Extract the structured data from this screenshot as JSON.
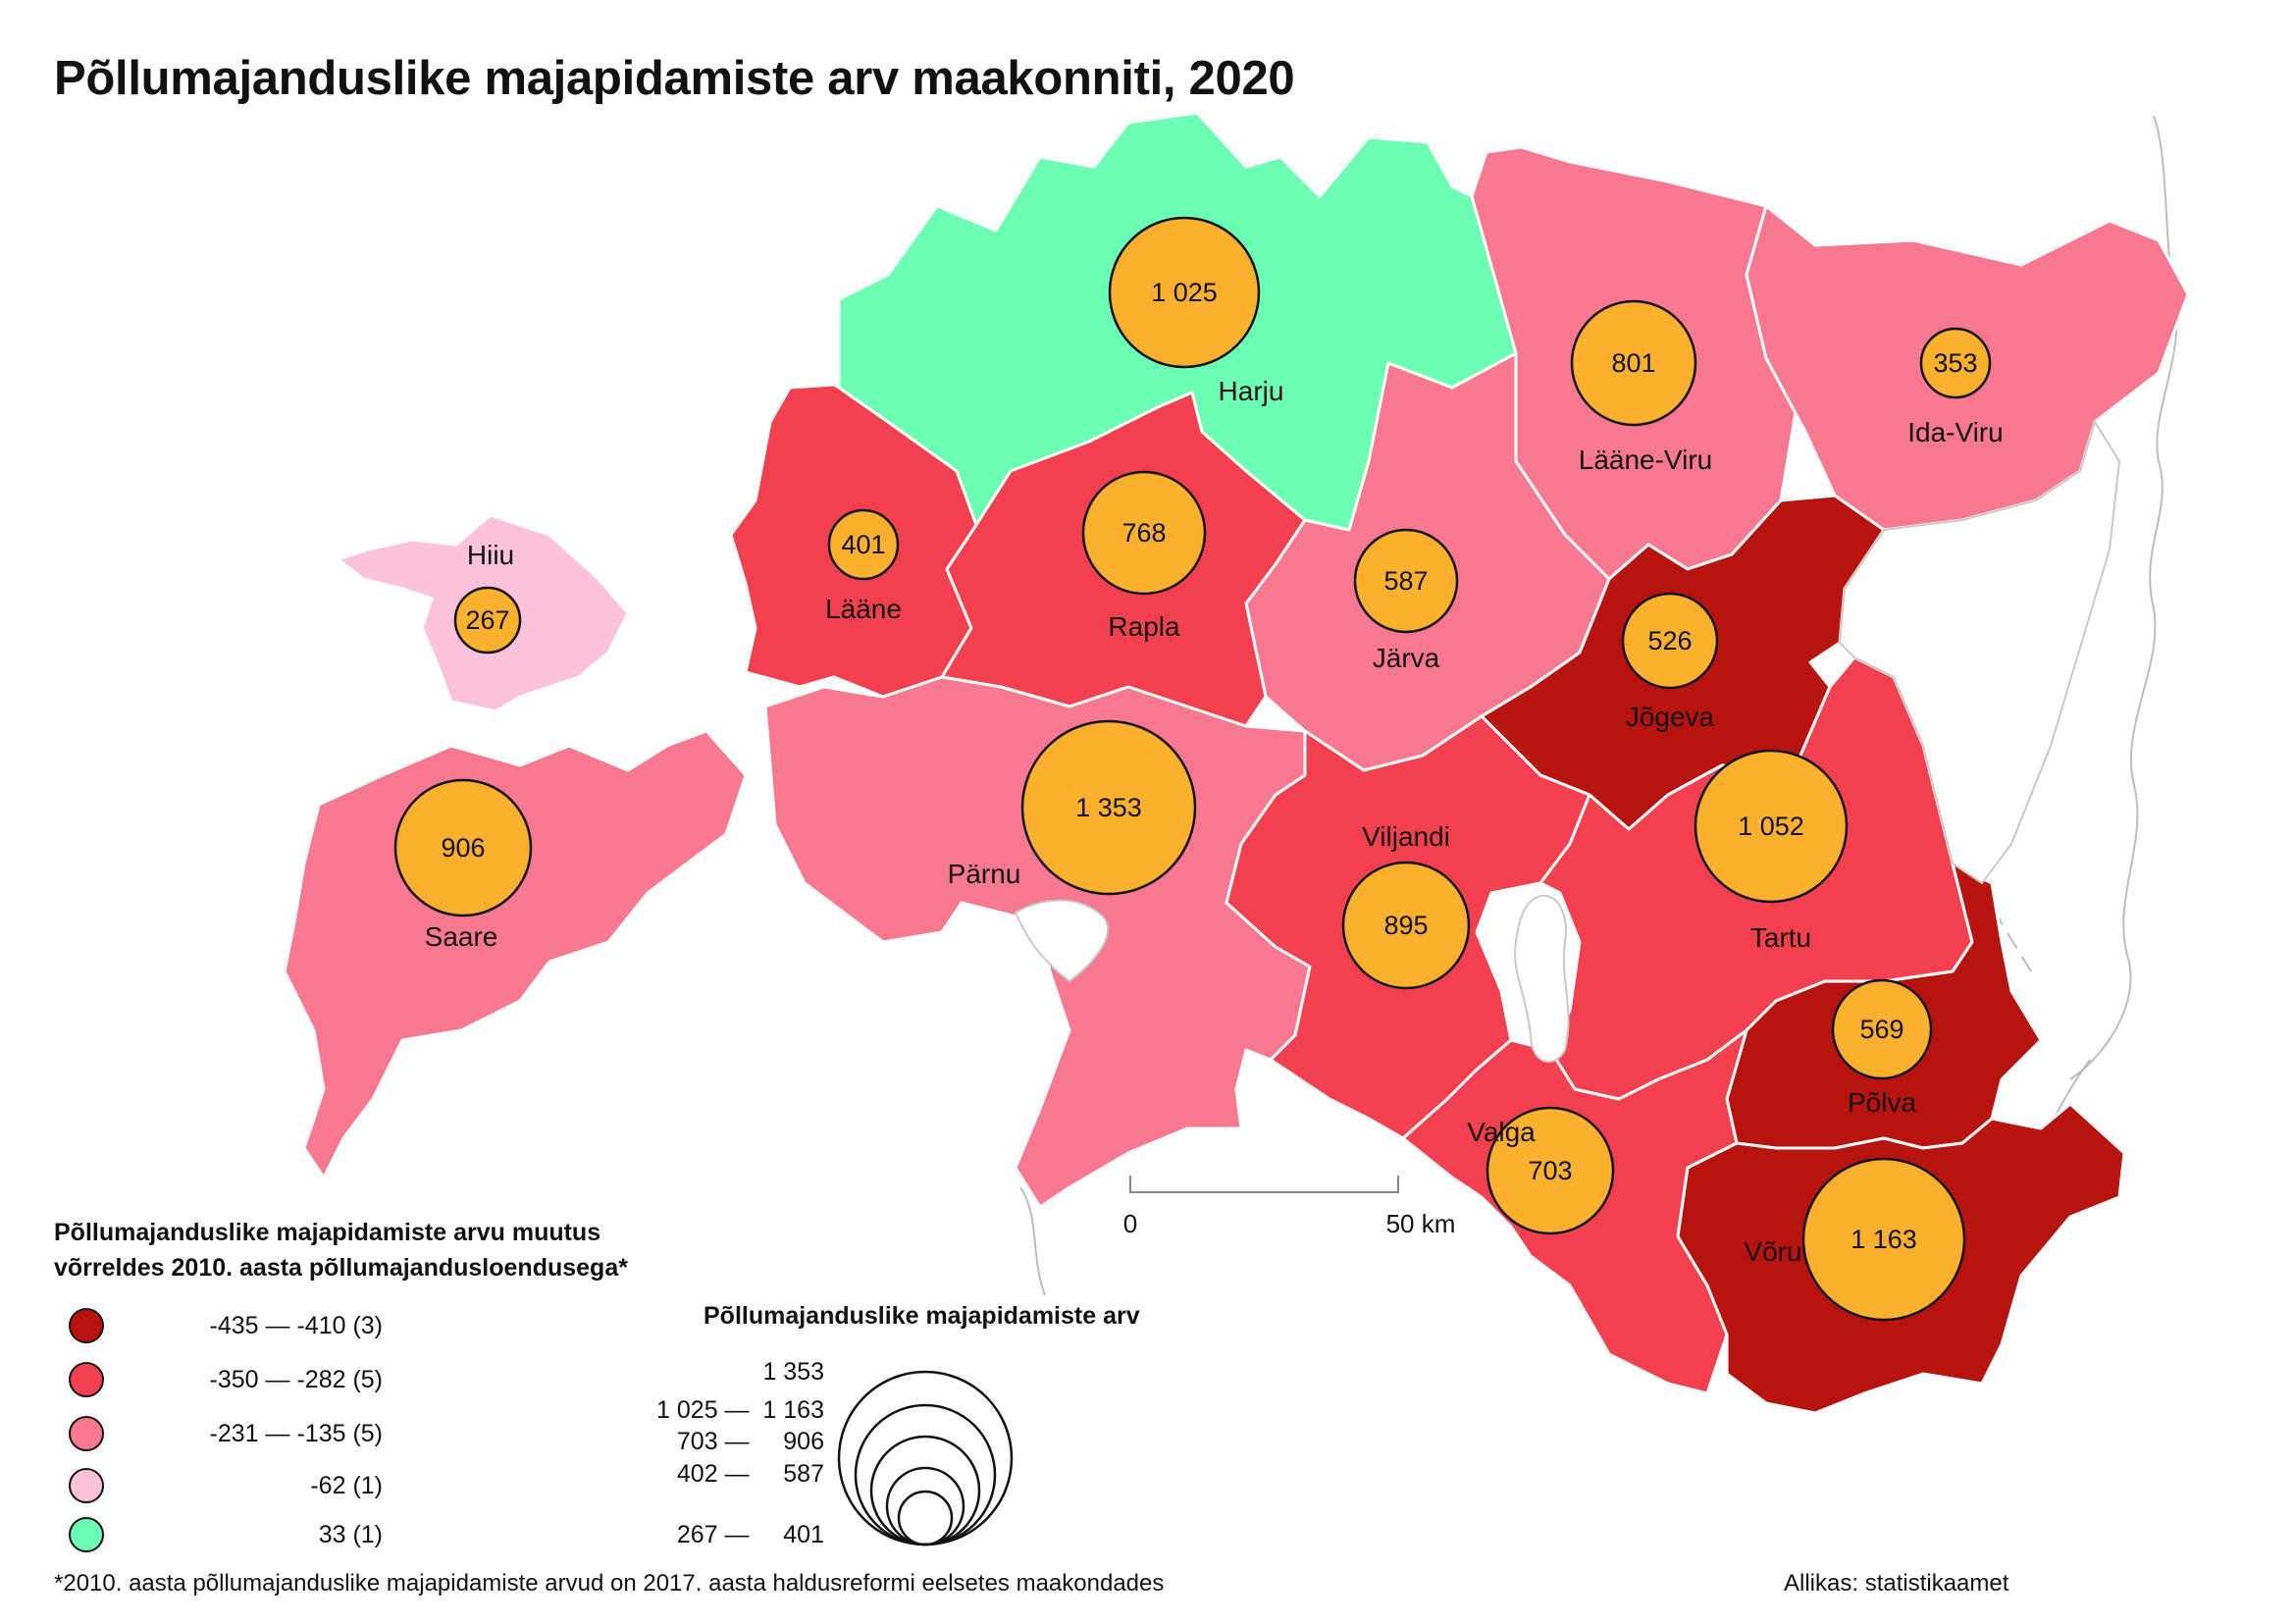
{
  "title": "Põllumajanduslike majapidamiste arv maakonniti, 2020",
  "colors": {
    "class1": "#b8140f",
    "class2": "#f2404f",
    "class3": "#f7788f",
    "class4": "#fbc2d9",
    "class5": "#6cffb4",
    "bubble": "#fbb12d"
  },
  "counties": [
    {
      "name": "Harju",
      "value": "1 025",
      "class": "class5"
    },
    {
      "name": "Lääne-Viru",
      "value": "801",
      "class": "class3"
    },
    {
      "name": "Ida-Viru",
      "value": "353",
      "class": "class3"
    },
    {
      "name": "Hiiu",
      "value": "267",
      "class": "class4"
    },
    {
      "name": "Lääne",
      "value": "401",
      "class": "class2"
    },
    {
      "name": "Rapla",
      "value": "768",
      "class": "class2"
    },
    {
      "name": "Järva",
      "value": "587",
      "class": "class3"
    },
    {
      "name": "Jõgeva",
      "value": "526",
      "class": "class1"
    },
    {
      "name": "Saare",
      "value": "906",
      "class": "class3"
    },
    {
      "name": "Pärnu",
      "value": "1 353",
      "class": "class3"
    },
    {
      "name": "Viljandi",
      "value": "895",
      "class": "class2"
    },
    {
      "name": "Tartu",
      "value": "1 052",
      "class": "class2"
    },
    {
      "name": "Põlva",
      "value": "569",
      "class": "class1"
    },
    {
      "name": "Valga",
      "value": "703",
      "class": "class2"
    },
    {
      "name": "Võru",
      "value": "1 163",
      "class": "class1"
    }
  ],
  "scale_bar": {
    "start": "0",
    "end": "50 km"
  },
  "color_legend": {
    "title_line1": "Põllumajanduslike majapidamiste arvu muutus",
    "title_line2": "võrreldes 2010. aasta põllumajandusloendusega*",
    "items": [
      {
        "label": "-435 — -410 (3)",
        "class": "class1"
      },
      {
        "label": "-350 — -282 (5)",
        "class": "class2"
      },
      {
        "label": "-231 — -135 (5)",
        "class": "class3"
      },
      {
        "label": "-62 (1)",
        "class": "class4"
      },
      {
        "label": "33 (1)",
        "class": "class5"
      }
    ]
  },
  "size_legend": {
    "title": "Põllumajanduslike majapidamiste arv",
    "labels": [
      "1 353",
      "1 025 —  1 163",
      "703 —     906",
      "402 —     587",
      "267 —     401"
    ]
  },
  "footnote": "*2010. aasta põllumajanduslike majapidamiste arvud on 2017. aasta haldusreformi eelsetes maakondades",
  "source": "Allikas: statistikaamet"
}
